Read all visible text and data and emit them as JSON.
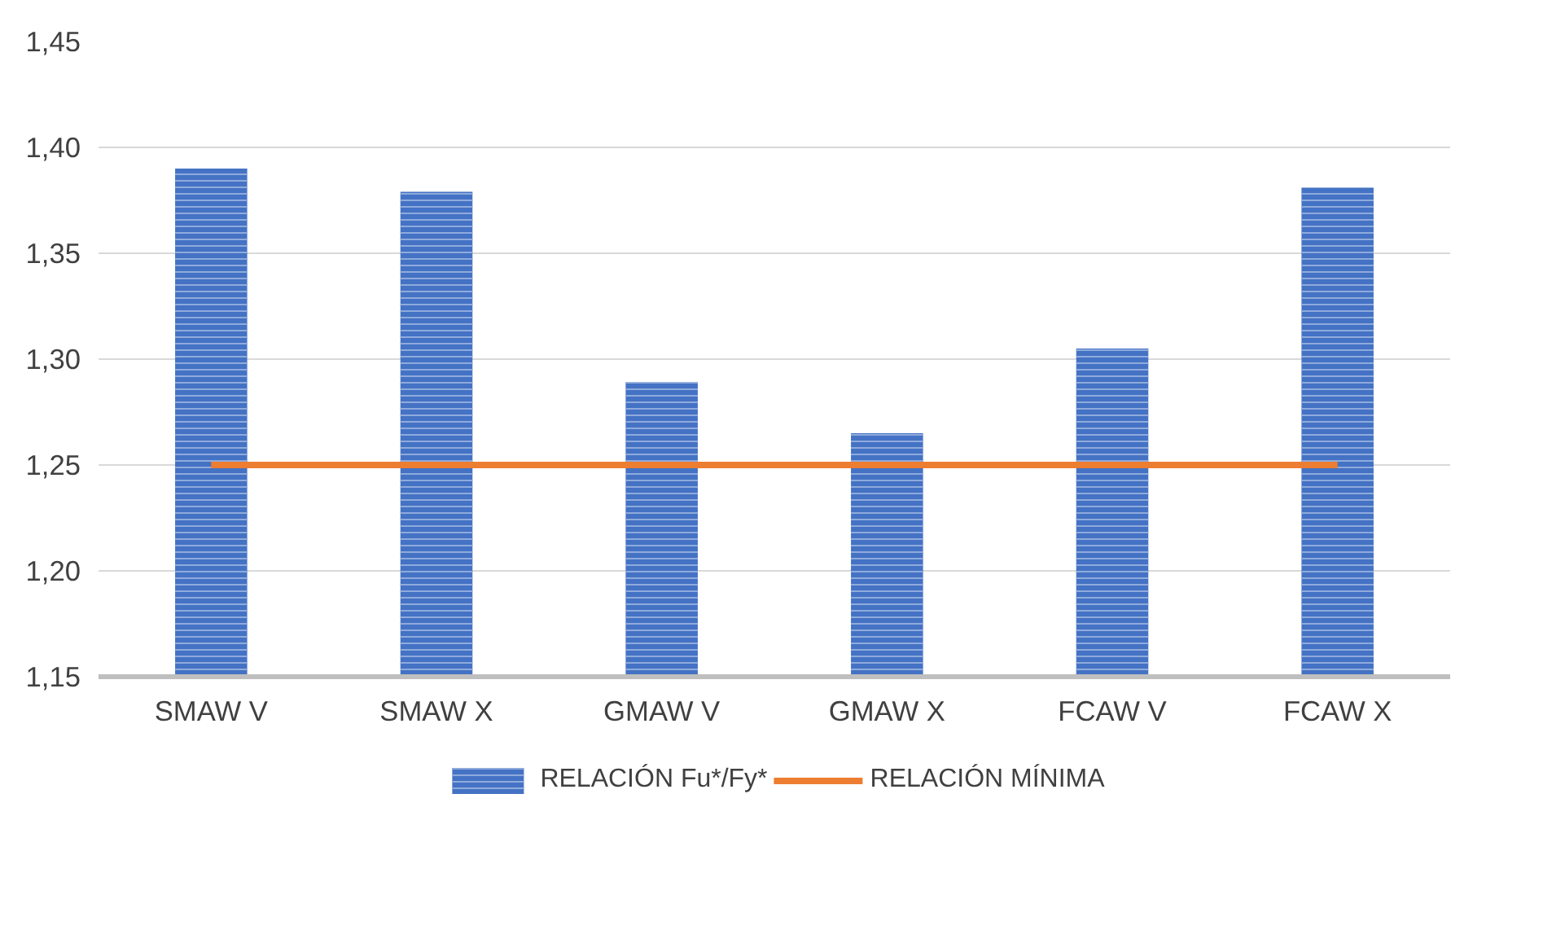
{
  "chart_data": {
    "type": "bar",
    "categories": [
      "SMAW V",
      "SMAW X",
      "GMAW V",
      "GMAW X",
      "FCAW V",
      "FCAW X"
    ],
    "series": [
      {
        "name": "RELACIÓN Fu*/Fy*",
        "color": "#4472c4",
        "type": "bar",
        "values": [
          1.39,
          1.379,
          1.289,
          1.265,
          1.305,
          1.381
        ]
      },
      {
        "name": "RELACIÓN MÍNIMA",
        "color": "#ed7d31",
        "type": "line",
        "values": [
          1.25,
          1.25,
          1.25,
          1.25,
          1.25,
          1.25
        ]
      }
    ],
    "ylim": [
      1.15,
      1.45
    ],
    "yticks": [
      {
        "value": 1.15,
        "label": "1,15"
      },
      {
        "value": 1.2,
        "label": "1,20"
      },
      {
        "value": 1.25,
        "label": "1,25"
      },
      {
        "value": 1.3,
        "label": "1,30"
      },
      {
        "value": 1.35,
        "label": "1,35"
      },
      {
        "value": 1.4,
        "label": "1,40"
      },
      {
        "value": 1.45,
        "label": "1,45"
      }
    ],
    "grid": "y",
    "legend": "bottom"
  }
}
